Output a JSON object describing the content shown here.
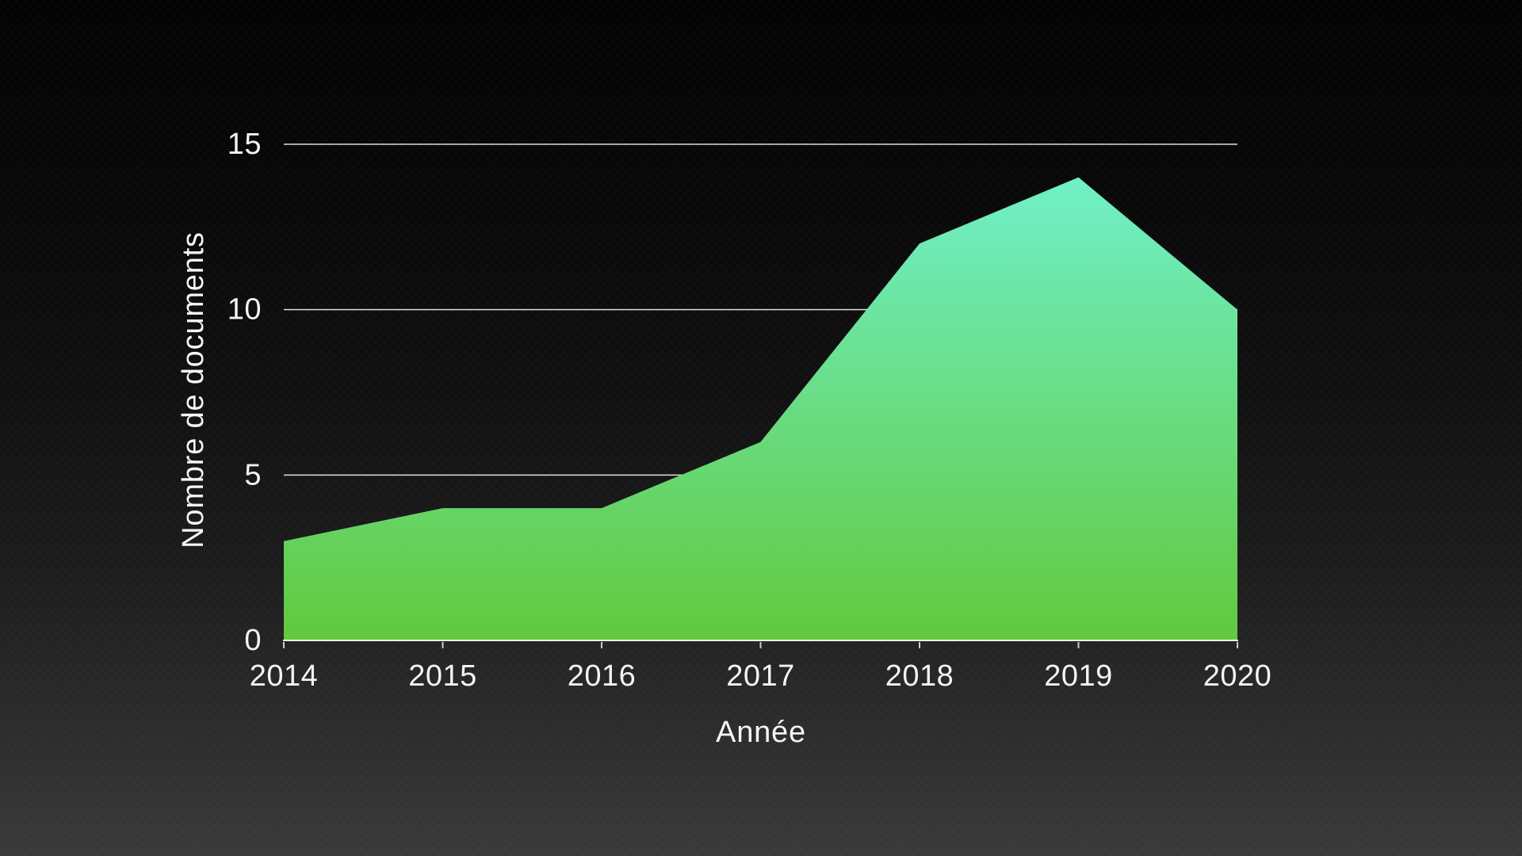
{
  "chart_data": {
    "type": "area",
    "title": "",
    "xlabel": "Année",
    "ylabel": "Nombre de documents",
    "categories": [
      "2014",
      "2015",
      "2016",
      "2017",
      "2018",
      "2019",
      "2020"
    ],
    "series": [
      {
        "name": "Nombre de documents",
        "values": [
          3,
          4,
          4,
          6,
          12,
          14,
          10
        ]
      }
    ],
    "ylim": [
      0,
      15
    ],
    "yticks": [
      0,
      5,
      10,
      15
    ],
    "grid": true,
    "legend_position": "none",
    "style": {
      "area_top_color": "#70F0C8",
      "area_bottom_color": "#62C93E",
      "gridline_color": "#F2F2F2",
      "axis_line_color": "#FAFAFA",
      "text_color": "#F3F3F3",
      "background_top_color": "#030303",
      "background_bottom_color": "#3A3A3A"
    }
  }
}
